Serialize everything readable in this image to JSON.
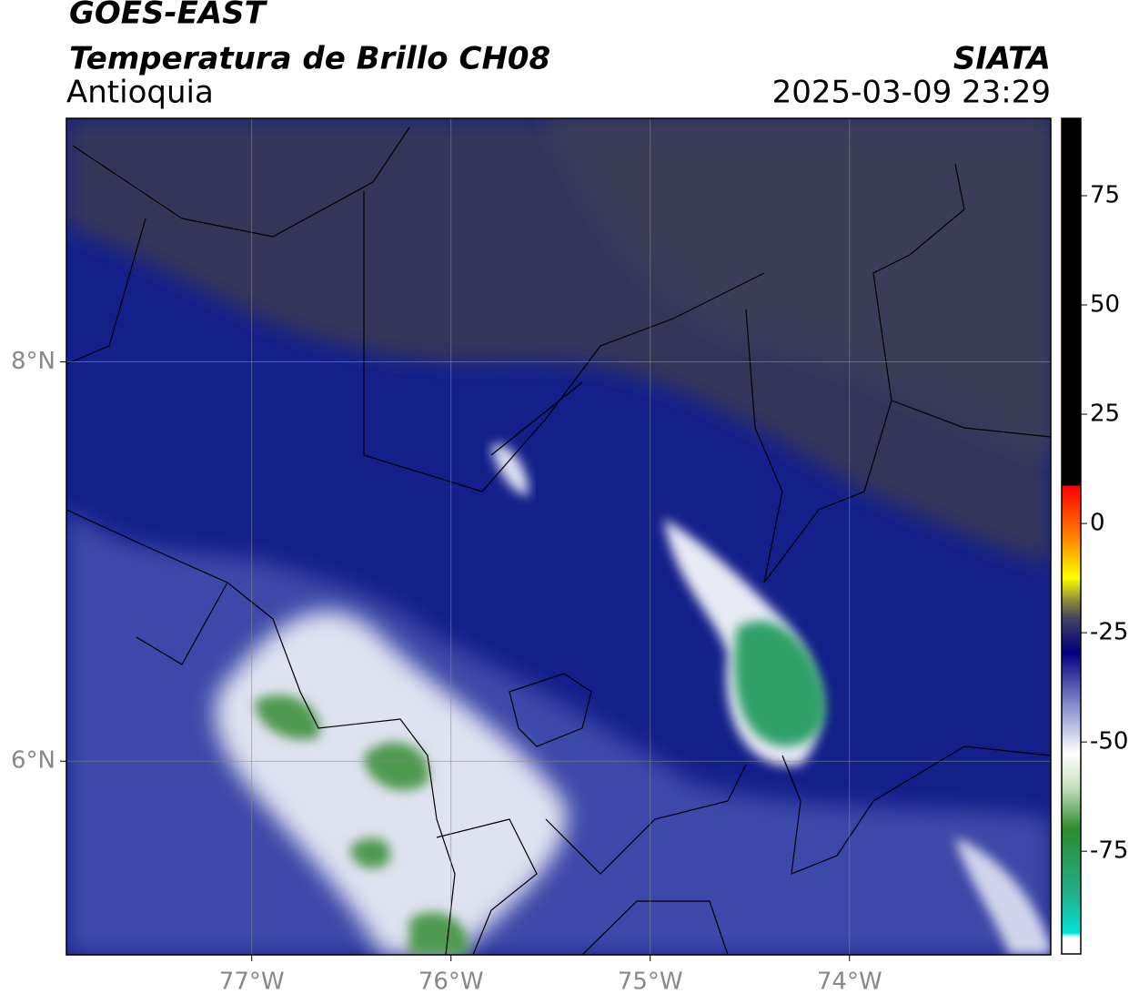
{
  "header": {
    "satellite": "GOES-EAST",
    "product": "Temperatura de Brillo CH08",
    "region": "Antioquia",
    "source": "SIATA",
    "datetime": "2025-03-09 23:29"
  },
  "map": {
    "lonlim": [
      -77.93,
      -72.99
    ],
    "latlim": [
      5.03,
      9.22
    ],
    "lon_ticks": [
      {
        "value": -77,
        "label": "77°W"
      },
      {
        "value": -76,
        "label": "76°W"
      },
      {
        "value": -75,
        "label": "75°W"
      },
      {
        "value": -74,
        "label": "74°W"
      }
    ],
    "lat_ticks": [
      {
        "value": 8,
        "label": "8°N"
      },
      {
        "value": 6,
        "label": "6°N"
      }
    ],
    "grid": true
  },
  "colorbar": {
    "lim": [
      -98.5,
      92.7
    ],
    "ticks": [
      -75,
      -50,
      -25,
      0,
      25,
      50,
      75
    ]
  }
}
